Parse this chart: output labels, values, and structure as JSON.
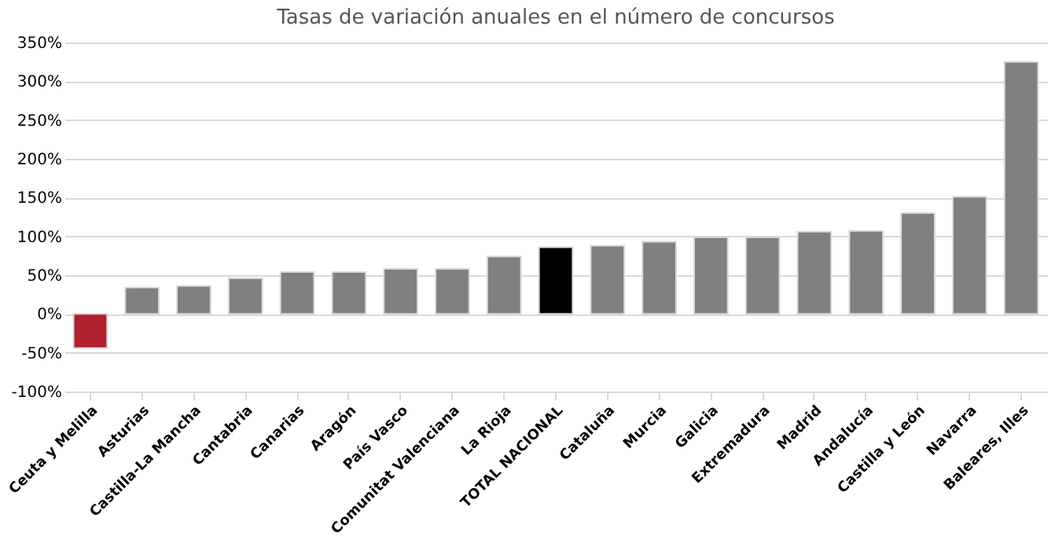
{
  "chart_data": {
    "type": "bar",
    "title": "Tasas de variación anuales en el número de concursos",
    "categories": [
      "Ceuta y Melilla",
      "Asturias",
      "Castilla-La Mancha",
      "Cantabria",
      "Canarias",
      "Aragón",
      "País Vasco",
      "Comunitat Valenciana",
      "La Rioja",
      "TOTAL NACIONAL",
      "Cataluña",
      "Murcia",
      "Galicia",
      "Extremadura",
      "Madrid",
      "Andalucía",
      "Castilla y León",
      "Navarra",
      "Baleares, Illes"
    ],
    "values": [
      -44,
      34,
      36,
      46,
      54,
      54,
      58,
      58,
      74,
      86,
      88,
      93,
      99,
      99,
      106,
      107,
      130,
      151,
      325
    ],
    "colors": [
      "#b01f2e",
      "#808080",
      "#808080",
      "#808080",
      "#808080",
      "#808080",
      "#808080",
      "#808080",
      "#808080",
      "#000000",
      "#808080",
      "#808080",
      "#808080",
      "#808080",
      "#808080",
      "#808080",
      "#808080",
      "#808080",
      "#808080"
    ],
    "ylim": [
      -100,
      350
    ],
    "yticks": [
      {
        "value": -100,
        "label": "-100%"
      },
      {
        "value": -50,
        "label": "-50%"
      },
      {
        "value": 0,
        "label": "0%"
      },
      {
        "value": 50,
        "label": "50%"
      },
      {
        "value": 100,
        "label": "100%"
      },
      {
        "value": 150,
        "label": "150%"
      },
      {
        "value": 200,
        "label": "200%"
      },
      {
        "value": 250,
        "label": "250%"
      },
      {
        "value": 300,
        "label": "300%"
      },
      {
        "value": 350,
        "label": "350%"
      }
    ],
    "grid": "y"
  }
}
